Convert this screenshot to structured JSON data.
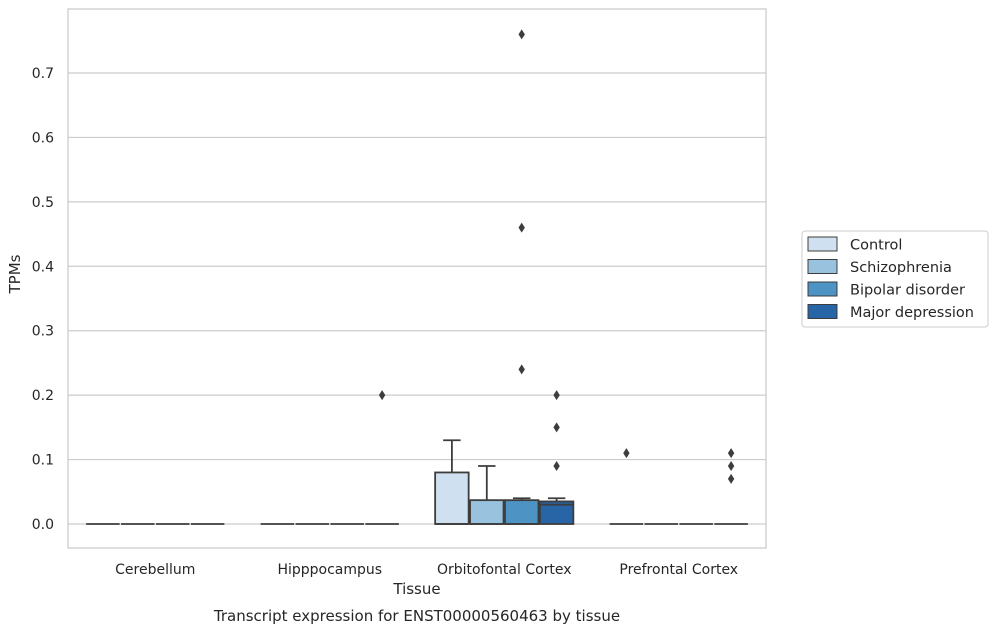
{
  "chart_data": {
    "type": "box",
    "title": "",
    "caption": "Transcript expression for ENST00000560463 by tissue",
    "xlabel": "Tissue",
    "ylabel": "TPMs",
    "ylim": [
      -0.037,
      0.8
    ],
    "yticks": [
      0.0,
      0.1,
      0.2,
      0.3,
      0.4,
      0.5,
      0.6,
      0.7
    ],
    "ytick_labels": [
      "0.0",
      "0.1",
      "0.2",
      "0.3",
      "0.4",
      "0.5",
      "0.6",
      "0.7"
    ],
    "grid": "horizontal",
    "legend_position": "right",
    "categories": [
      "Cerebellum",
      "Hipppocampus",
      "Orbitofontal Cortex",
      "Prefrontal Cortex"
    ],
    "series": [
      {
        "name": "Control",
        "color": "#cfe0f0",
        "boxes": [
          {
            "q1": 0,
            "median": 0,
            "q3": 0,
            "whisker_low": 0,
            "whisker_high": 0,
            "outliers": []
          },
          {
            "q1": 0,
            "median": 0,
            "q3": 0,
            "whisker_low": 0,
            "whisker_high": 0,
            "outliers": []
          },
          {
            "q1": 0,
            "median": 0,
            "q3": 0.08,
            "whisker_low": 0,
            "whisker_high": 0.13,
            "outliers": []
          },
          {
            "q1": 0,
            "median": 0,
            "q3": 0,
            "whisker_low": 0,
            "whisker_high": 0,
            "outliers": [
              0.11
            ]
          }
        ]
      },
      {
        "name": "Schizophrenia",
        "color": "#99c2de",
        "boxes": [
          {
            "q1": 0,
            "median": 0,
            "q3": 0,
            "whisker_low": 0,
            "whisker_high": 0,
            "outliers": []
          },
          {
            "q1": 0,
            "median": 0,
            "q3": 0,
            "whisker_low": 0,
            "whisker_high": 0,
            "outliers": []
          },
          {
            "q1": 0,
            "median": 0,
            "q3": 0.037,
            "whisker_low": 0,
            "whisker_high": 0.09,
            "outliers": []
          },
          {
            "q1": 0,
            "median": 0,
            "q3": 0,
            "whisker_low": 0,
            "whisker_high": 0,
            "outliers": []
          }
        ]
      },
      {
        "name": "Bipolar disorder",
        "color": "#4d93c3",
        "boxes": [
          {
            "q1": 0,
            "median": 0,
            "q3": 0,
            "whisker_low": 0,
            "whisker_high": 0,
            "outliers": []
          },
          {
            "q1": 0,
            "median": 0,
            "q3": 0,
            "whisker_low": 0,
            "whisker_high": 0,
            "outliers": []
          },
          {
            "q1": 0,
            "median": 0,
            "q3": 0.037,
            "whisker_low": 0,
            "whisker_high": 0.04,
            "outliers": [
              0.76,
              0.46,
              0.24
            ]
          },
          {
            "q1": 0,
            "median": 0,
            "q3": 0,
            "whisker_low": 0,
            "whisker_high": 0,
            "outliers": []
          }
        ]
      },
      {
        "name": "Major depression",
        "color": "#2865a6",
        "boxes": [
          {
            "q1": 0,
            "median": 0,
            "q3": 0,
            "whisker_low": 0,
            "whisker_high": 0,
            "outliers": []
          },
          {
            "q1": 0,
            "median": 0,
            "q3": 0,
            "whisker_low": 0,
            "whisker_high": 0,
            "outliers": [
              0.2
            ]
          },
          {
            "q1": 0,
            "median": 0.03,
            "q3": 0.035,
            "whisker_low": 0,
            "whisker_high": 0.04,
            "outliers": [
              0.2,
              0.15,
              0.09
            ]
          },
          {
            "q1": 0,
            "median": 0,
            "q3": 0,
            "whisker_low": 0,
            "whisker_high": 0,
            "outliers": [
              0.11,
              0.09,
              0.07
            ]
          }
        ]
      }
    ]
  }
}
